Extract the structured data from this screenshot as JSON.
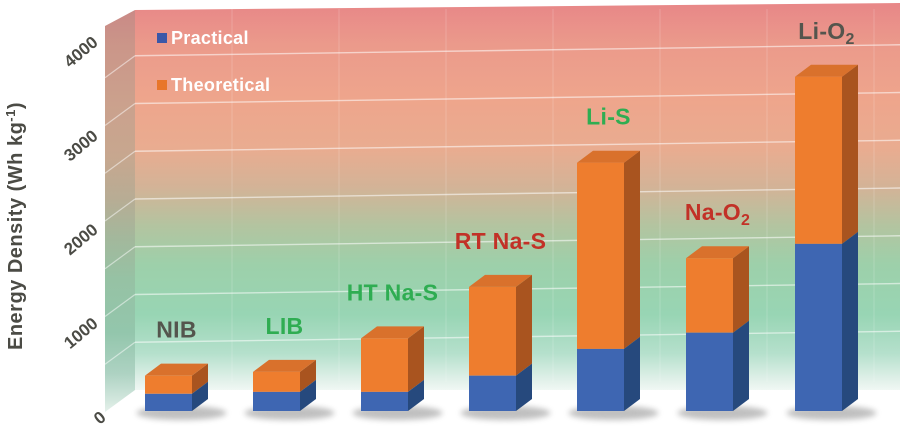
{
  "page": {
    "background": "#FFFFFF",
    "description": "3D stacked bar chart comparing practical and theoretical energy densities of battery systems"
  },
  "y_axis": {
    "title": {
      "text": "Energy Density (Wh kg",
      "superscript": "-1",
      "suffix": ")"
    },
    "ticks": [
      {
        "label": "0",
        "value": 0
      },
      {
        "label": "1000",
        "value": 1000
      },
      {
        "label": "2000",
        "value": 2000
      },
      {
        "label": "3000",
        "value": 3000
      },
      {
        "label": "4000",
        "value": 4000
      }
    ],
    "range": [
      0,
      4000
    ],
    "grid_interval": 500,
    "tick_color": "#4B4B45"
  },
  "legend": {
    "position": "top-left",
    "text_color": "#FFFFFF",
    "items": [
      {
        "label": "Practical",
        "swatch_color": "#3A57A8"
      },
      {
        "label": "Theoretical",
        "swatch_color": "#E8762B"
      }
    ]
  },
  "chart_data": {
    "type": "bar",
    "variant": "3d-stacked",
    "title": "",
    "xlabel": "",
    "ylabel": "Energy Density (Wh kg-1)",
    "ylim": [
      0,
      4000
    ],
    "grid": true,
    "units": "Wh kg-1",
    "categories": [
      {
        "main": "NIB",
        "sub": "",
        "label_color": "#54554D"
      },
      {
        "main": "LIB",
        "sub": "",
        "label_color": "#2FAD52"
      },
      {
        "main": "HT Na-S",
        "sub": "",
        "label_color": "#2FAD52"
      },
      {
        "main": "RT Na-S",
        "sub": "",
        "label_color": "#C23127"
      },
      {
        "main": "Na-O",
        "sub": "2",
        "label_color": "#C23127"
      },
      {
        "main": "Li-S",
        "sub": "",
        "label_color": "#2FAD52"
      },
      {
        "main": "Li-O",
        "sub": "2",
        "label_color": "#54554D"
      }
    ],
    "category_order_on_x": [
      "NIB",
      "LIB",
      "HT Na-S",
      "RT Na-S",
      "Li-S",
      "Na-O2",
      "Li-O2"
    ],
    "series": [
      {
        "name": "Practical",
        "color": "#3E66B2",
        "side_color": "#26497D",
        "values_by_x": [
          180,
          200,
          200,
          370,
          650,
          820,
          1750
        ]
      },
      {
        "name": "Theoretical",
        "color": "#EE7D2E",
        "side_color": "#A9541F",
        "top_color": "#D9712C",
        "note": "values are total bar heights; orange segment drawn from practical level up to theoretical level",
        "values_by_x": [
          370,
          410,
          760,
          1300,
          2600,
          1600,
          3500
        ]
      }
    ],
    "label_index_by_x": [
      0,
      1,
      2,
      3,
      5,
      4,
      6
    ]
  },
  "colors": {
    "wall_red_top": "#E88888",
    "wall_salmon": "#EEA58C",
    "wall_tan": "#D3B397",
    "wall_green": "#9DD0AA",
    "wall_mint_bottom": "#EDF6F1",
    "left_wall_red": "#C98886",
    "left_wall_green": "#96C2A4",
    "floor": "#FFFFFF",
    "gridline": "#FFFFFF",
    "shadow": "#5A5A5A"
  }
}
